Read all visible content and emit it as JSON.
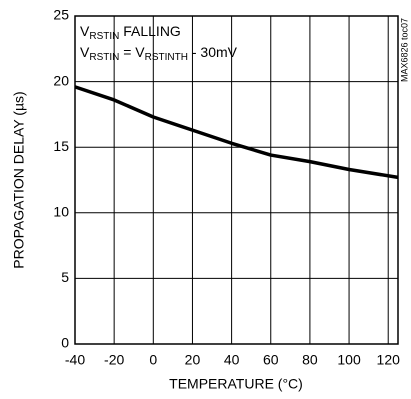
{
  "chart_data": {
    "type": "line",
    "x_label": "TEMPERATURE (°C)",
    "y_label": "PROPAGATION DELAY (µs)",
    "annotations": [
      [
        "V",
        "RSTIN",
        " FALLING"
      ],
      [
        "V",
        "RSTIN",
        " = V",
        "RSTINTH",
        " - 30mV"
      ]
    ],
    "watermark": "MAX6826 toc07",
    "x": [
      -40,
      -20,
      0,
      20,
      40,
      60,
      80,
      100,
      125
    ],
    "series": [
      {
        "color": "#000000",
        "values": [
          19.6,
          18.6,
          17.3,
          16.3,
          15.3,
          14.4,
          13.9,
          13.3,
          12.7
        ]
      }
    ],
    "xlim": [
      -40,
      125
    ],
    "xticks": [
      -40,
      -20,
      0,
      20,
      40,
      60,
      80,
      100,
      120
    ],
    "ylim": [
      0,
      25
    ],
    "yticks": [
      0,
      5,
      10,
      15,
      20,
      25
    ],
    "grid": true
  }
}
